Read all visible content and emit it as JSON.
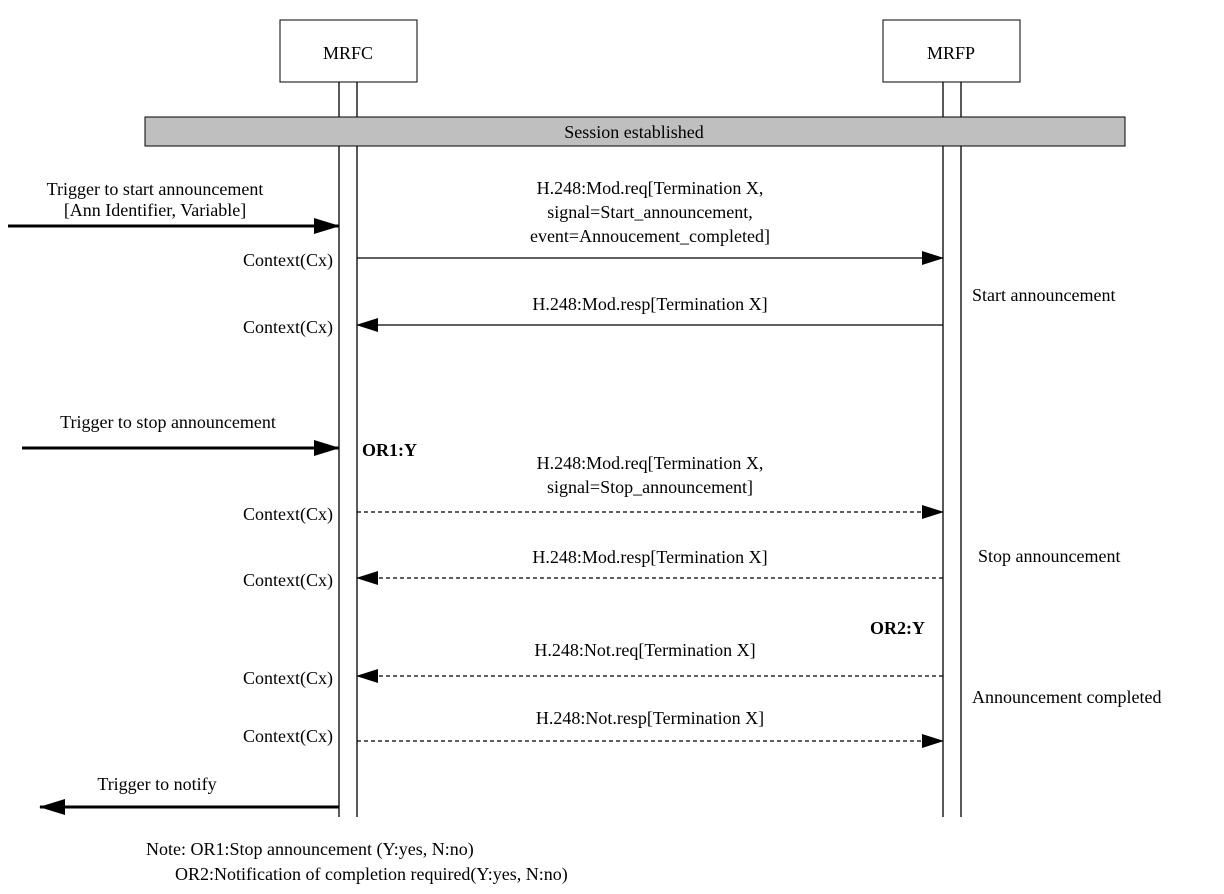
{
  "entities": {
    "mrfc": "MRFC",
    "mrfp": "MRFP"
  },
  "session_bar": "Session established",
  "external": {
    "trigger_start_line1": "Trigger to start announcement",
    "trigger_start_line2": "[Ann Identifier, Variable]",
    "trigger_stop": "Trigger to stop announcement",
    "trigger_notify": "Trigger to notify"
  },
  "messages": [
    {
      "lines": [
        "H.248:Mod.req[Termination X,",
        "signal=Start_announcement,",
        "event=Annoucement_completed]"
      ],
      "dir": "right",
      "style": "solid"
    },
    {
      "lines": [
        "H.248:Mod.resp[Termination X]"
      ],
      "dir": "left",
      "style": "solid"
    },
    {
      "lines": [
        "H.248:Mod.req[Termination X,",
        "signal=Stop_announcement]"
      ],
      "dir": "right",
      "style": "dashed"
    },
    {
      "lines": [
        "H.248:Mod.resp[Termination X]"
      ],
      "dir": "left",
      "style": "dashed"
    },
    {
      "lines": [
        "H.248:Not.req[Termination X]"
      ],
      "dir": "left",
      "style": "dashed"
    },
    {
      "lines": [
        "H.248:Not.resp[Termination X]"
      ],
      "dir": "right",
      "style": "dashed"
    }
  ],
  "context_label": "Context(Cx)",
  "side_notes": {
    "start": "Start announcement",
    "stop": "Stop announcement",
    "completed": "Announcement completed"
  },
  "options": {
    "or1": "OR1:Y",
    "or2": "OR2:Y"
  },
  "note": {
    "line1": "Note: OR1:Stop announcement (Y:yes, N:no)",
    "line2": "OR2:Notification of completion required(Y:yes, N:no)"
  }
}
